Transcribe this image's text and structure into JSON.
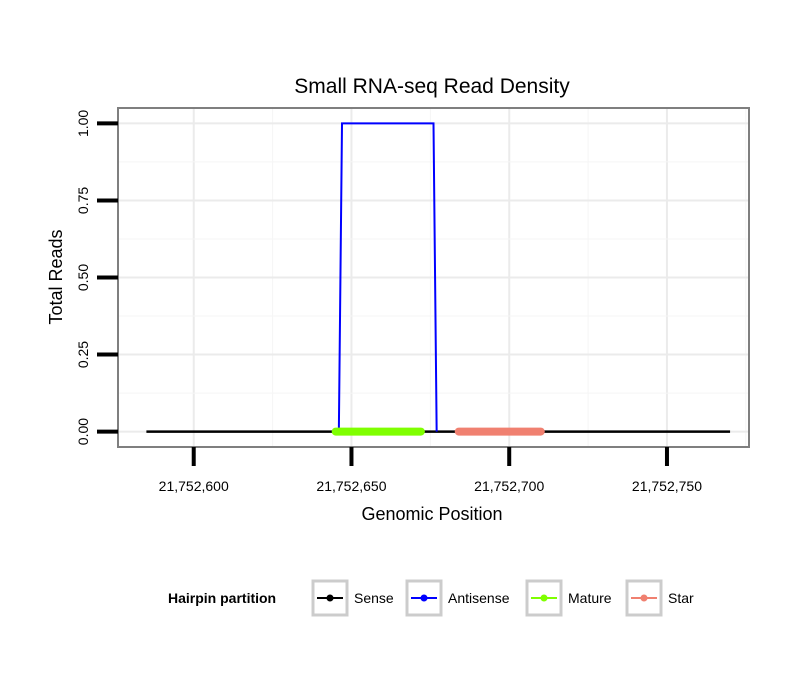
{
  "chart_data": {
    "type": "line",
    "title": "Small RNA-seq Read Density",
    "xlabel": "Genomic Position",
    "ylabel": "Total Reads",
    "xlim": [
      21752576,
      21752776
    ],
    "ylim": [
      -0.05,
      1.05
    ],
    "x_ticks": [
      21752600,
      21752650,
      21752700,
      21752750
    ],
    "x_tick_labels": [
      "21,752,600",
      "21,752,650",
      "21,752,700",
      "21,752,750"
    ],
    "y_ticks": [
      0,
      0.25,
      0.5,
      0.75,
      1
    ],
    "y_tick_labels": [
      "0.00",
      "0.25",
      "0.50",
      "0.75",
      "1.00"
    ],
    "grid": true,
    "legend": {
      "title": "Hairpin partition",
      "position": "bottom",
      "entries": [
        "Sense",
        "Antisense",
        "Mature",
        "Star"
      ]
    },
    "series": [
      {
        "name": "Sense",
        "color": "#000000",
        "x": [
          21752585,
          21752770
        ],
        "y": [
          0,
          0
        ]
      },
      {
        "name": "Antisense",
        "color": "#0000ff",
        "x": [
          21752646,
          21752647,
          21752676,
          21752677
        ],
        "y": [
          0,
          1,
          1,
          0
        ]
      },
      {
        "name": "Mature",
        "color": "#7fff00",
        "x": [
          21752645,
          21752672
        ],
        "y": [
          0,
          0
        ]
      },
      {
        "name": "Star",
        "color": "#f08070",
        "x": [
          21752684,
          21752710
        ],
        "y": [
          0,
          0
        ]
      }
    ]
  }
}
